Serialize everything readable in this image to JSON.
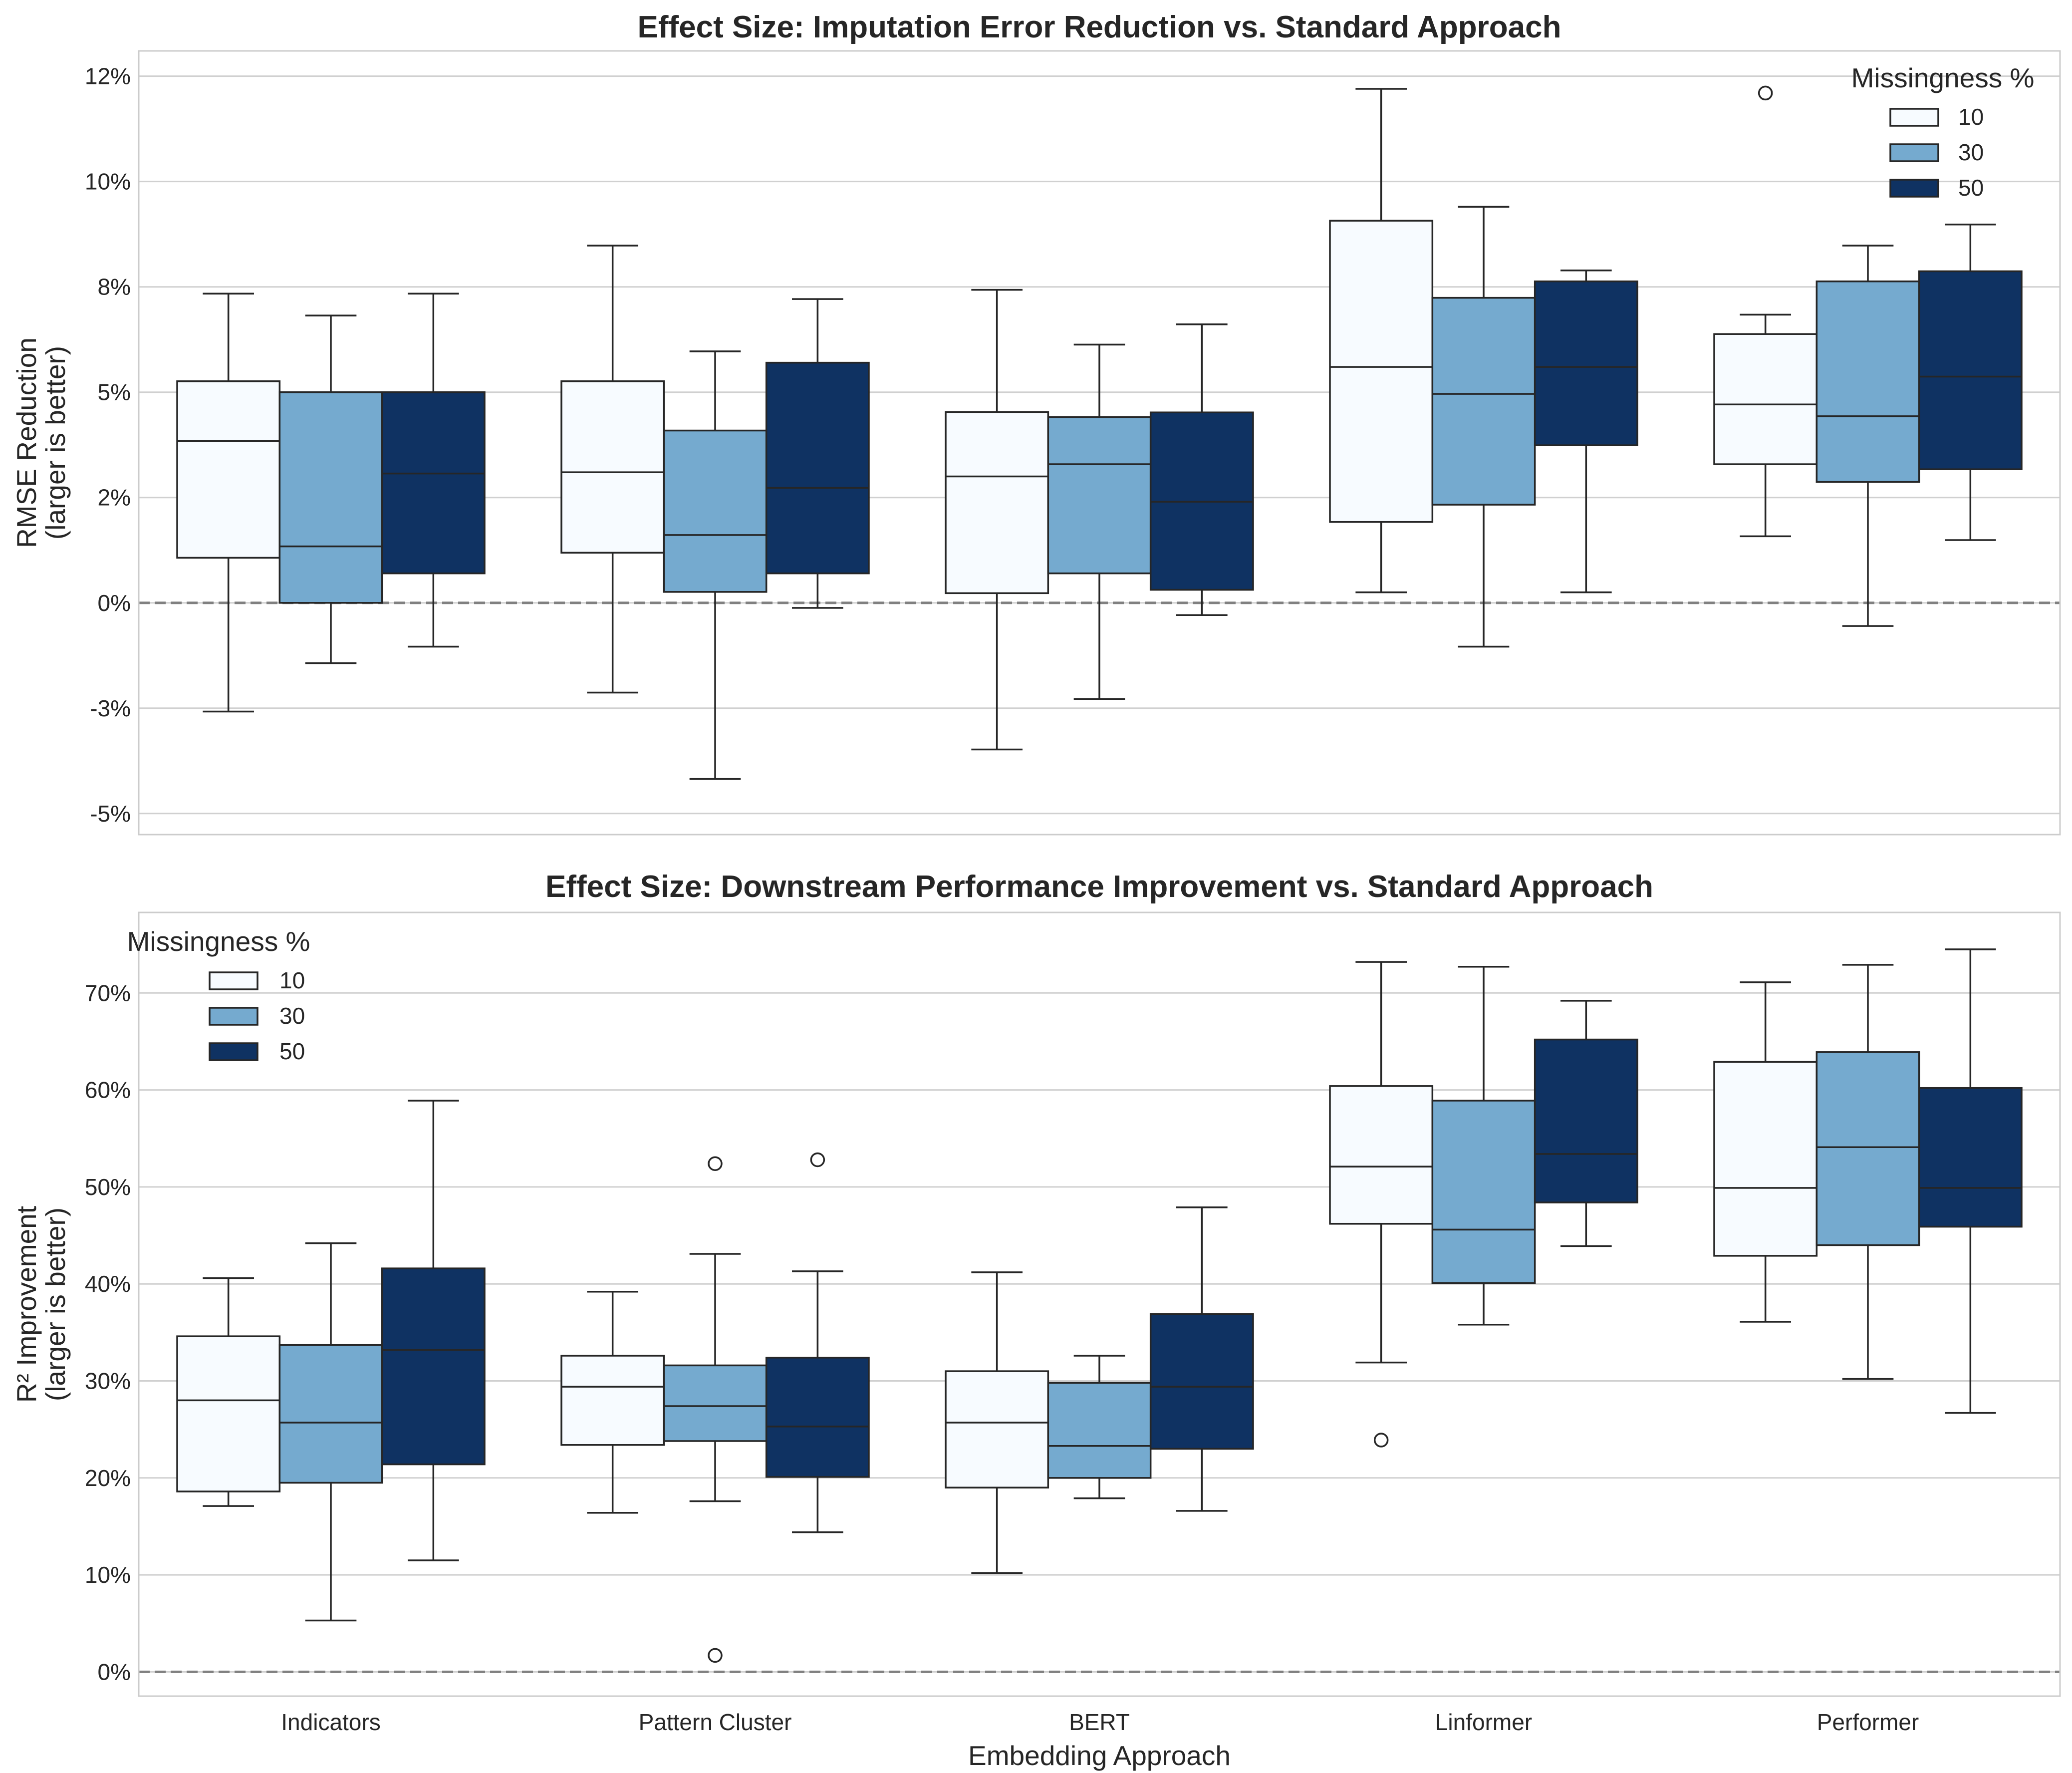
{
  "chart_data": [
    {
      "type": "box",
      "title": "Effect Size: Imputation Error Reduction vs. Standard Approach",
      "xlabel": "",
      "ylabel": "RMSE Reduction\n(larger is better)",
      "y_tick_values": [
        -5,
        -2.5,
        0,
        2.5,
        5,
        7.5,
        10,
        12.5
      ],
      "y_tick_labels": [
        "-5%",
        "-3%",
        "0%",
        "2%",
        "5%",
        "8%",
        "10%",
        "12%"
      ],
      "ylim": [
        -5.5,
        13.1
      ],
      "grid": true,
      "reference_line": 0,
      "categories": [
        "Indicators",
        "Pattern Cluster",
        "BERT",
        "Linformer",
        "Performer"
      ],
      "legend": {
        "title": "Missingness %",
        "placement": "top-right",
        "entries": [
          "10",
          "30",
          "50"
        ]
      },
      "series": [
        {
          "name": "10",
          "color": "#f7fbff",
          "boxes": [
            {
              "whislo": -2.58,
              "q1": 1.07,
              "med": 3.84,
              "q3": 5.26,
              "whishi": 7.34,
              "fliers": []
            },
            {
              "whislo": -2.13,
              "q1": 1.19,
              "med": 3.1,
              "q3": 5.26,
              "whishi": 8.48,
              "fliers": []
            },
            {
              "whislo": -3.48,
              "q1": 0.23,
              "med": 3.0,
              "q3": 4.53,
              "whishi": 7.43,
              "fliers": []
            },
            {
              "whislo": 0.25,
              "q1": 1.92,
              "med": 5.6,
              "q3": 9.07,
              "whishi": 12.2,
              "fliers": []
            },
            {
              "whislo": 1.58,
              "q1": 3.29,
              "med": 4.71,
              "q3": 6.38,
              "whishi": 6.84,
              "fliers": [
                12.1
              ]
            }
          ]
        },
        {
          "name": "30",
          "color": "#75aacf",
          "boxes": [
            {
              "whislo": -1.43,
              "q1": 0.0,
              "med": 1.34,
              "q3": 5.0,
              "whishi": 6.82,
              "fliers": []
            },
            {
              "whislo": -4.18,
              "q1": 0.26,
              "med": 1.61,
              "q3": 4.09,
              "whishi": 5.97,
              "fliers": []
            },
            {
              "whislo": -2.28,
              "q1": 0.7,
              "med": 3.29,
              "q3": 4.41,
              "whishi": 6.13,
              "fliers": []
            },
            {
              "whislo": -1.04,
              "q1": 2.33,
              "med": 4.96,
              "q3": 7.24,
              "whishi": 9.4,
              "fliers": []
            },
            {
              "whislo": -0.55,
              "q1": 2.87,
              "med": 4.43,
              "q3": 7.63,
              "whishi": 8.48,
              "fliers": []
            }
          ]
        },
        {
          "name": "50",
          "color": "#0f3262",
          "boxes": [
            {
              "whislo": -1.04,
              "q1": 0.7,
              "med": 3.07,
              "q3": 5.0,
              "whishi": 7.34,
              "fliers": []
            },
            {
              "whislo": -0.12,
              "q1": 0.7,
              "med": 2.73,
              "q3": 5.7,
              "whishi": 7.21,
              "fliers": []
            },
            {
              "whislo": -0.29,
              "q1": 0.31,
              "med": 2.4,
              "q3": 4.52,
              "whishi": 6.61,
              "fliers": []
            },
            {
              "whislo": 0.25,
              "q1": 3.74,
              "med": 5.6,
              "q3": 7.63,
              "whishi": 7.89,
              "fliers": []
            },
            {
              "whislo": 1.49,
              "q1": 3.17,
              "med": 5.37,
              "q3": 7.87,
              "whishi": 8.98,
              "fliers": []
            }
          ]
        }
      ]
    },
    {
      "type": "box",
      "title": "Effect Size: Downstream Performance Improvement vs. Standard Approach",
      "xlabel": "Embedding Approach",
      "ylabel": "R² Improvement\n(larger is better)",
      "y_tick_values": [
        0,
        10,
        20,
        30,
        40,
        50,
        60,
        70
      ],
      "y_tick_labels": [
        "0%",
        "10%",
        "20%",
        "30%",
        "40%",
        "50%",
        "60%",
        "70%"
      ],
      "ylim": [
        -2.5,
        78.3
      ],
      "grid": true,
      "reference_line": 0,
      "categories": [
        "Indicators",
        "Pattern Cluster",
        "BERT",
        "Linformer",
        "Performer"
      ],
      "legend": {
        "title": "Missingness %",
        "placement": "top-left",
        "entries": [
          "10",
          "30",
          "50"
        ]
      },
      "series": [
        {
          "name": "10",
          "color": "#f7fbff",
          "boxes": [
            {
              "whislo": 17.1,
              "q1": 18.6,
              "med": 28.0,
              "q3": 34.6,
              "whishi": 40.6,
              "fliers": []
            },
            {
              "whislo": 16.4,
              "q1": 23.4,
              "med": 29.4,
              "q3": 32.6,
              "whishi": 39.2,
              "fliers": []
            },
            {
              "whislo": 10.2,
              "q1": 19.0,
              "med": 25.7,
              "q3": 31.0,
              "whishi": 41.2,
              "fliers": []
            },
            {
              "whislo": 31.9,
              "q1": 46.2,
              "med": 52.1,
              "q3": 60.4,
              "whishi": 73.2,
              "fliers": [
                23.9
              ]
            },
            {
              "whislo": 36.1,
              "q1": 42.9,
              "med": 49.9,
              "q3": 62.9,
              "whishi": 71.1,
              "fliers": []
            }
          ]
        },
        {
          "name": "30",
          "color": "#75aacf",
          "boxes": [
            {
              "whislo": 5.3,
              "q1": 19.5,
              "med": 25.7,
              "q3": 33.7,
              "whishi": 44.2,
              "fliers": []
            },
            {
              "whislo": 17.6,
              "q1": 23.8,
              "med": 27.4,
              "q3": 31.6,
              "whishi": 43.1,
              "fliers": [
                52.4,
                1.7
              ]
            },
            {
              "whislo": 17.9,
              "q1": 20.0,
              "med": 23.3,
              "q3": 29.8,
              "whishi": 32.6,
              "fliers": []
            },
            {
              "whislo": 35.8,
              "q1": 40.1,
              "med": 45.6,
              "q3": 58.9,
              "whishi": 72.7,
              "fliers": []
            },
            {
              "whislo": 30.2,
              "q1": 44.0,
              "med": 54.1,
              "q3": 63.9,
              "whishi": 72.9,
              "fliers": []
            }
          ]
        },
        {
          "name": "50",
          "color": "#0f3262",
          "boxes": [
            {
              "whislo": 11.5,
              "q1": 21.4,
              "med": 33.2,
              "q3": 41.6,
              "whishi": 58.9,
              "fliers": []
            },
            {
              "whislo": 14.4,
              "q1": 20.1,
              "med": 25.3,
              "q3": 32.4,
              "whishi": 41.3,
              "fliers": [
                52.8
              ]
            },
            {
              "whislo": 16.6,
              "q1": 23.0,
              "med": 29.4,
              "q3": 36.9,
              "whishi": 47.9,
              "fliers": []
            },
            {
              "whislo": 43.9,
              "q1": 48.4,
              "med": 53.4,
              "q3": 65.2,
              "whishi": 69.2,
              "fliers": []
            },
            {
              "whislo": 26.7,
              "q1": 45.9,
              "med": 49.9,
              "q3": 60.2,
              "whishi": 74.5,
              "fliers": []
            }
          ]
        }
      ]
    }
  ]
}
